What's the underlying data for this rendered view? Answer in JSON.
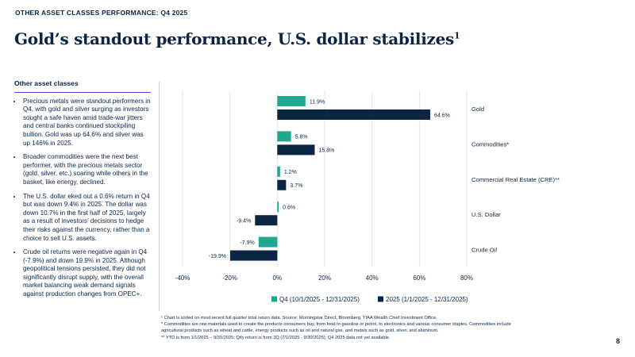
{
  "header": {
    "kicker": "OTHER ASSET CLASSES PERFORMANCE: Q4 2025",
    "title": "Gold’s standout performance, U.S. dollar stabilizes",
    "title_sup": "1"
  },
  "sidebar": {
    "heading": "Other asset classes",
    "bullets": [
      "Precious metals were standout performers in Q4, with gold and silver surging as investors sought a safe haven amid trade-war jitters and central banks continued stockpiling bullion. Gold was up 64.6% and silver was up 146% in 2025.",
      "Broader commodities were the next best performer, with the precious metals sector (gold, silver, etc.) soaring while others in the basket, like energy, declined.",
      "The U.S. dollar eked out a 0.6% return in Q4 but was down 9.4% in 2025. The dollar was down 10.7% in the first half of 2025, largely as a result of investors’ decisions to hedge their risks against the currency, rather than a choice to sell U.S. assets.",
      "Crude oil returns were negative again in Q4 (-7.9%) and down 19.9% in 2025. Although geopolitical tensions persisted, they did not significantly disrupt supply, with the overall market balancing weak demand signals against production changes from OPEC+."
    ]
  },
  "chart_data": {
    "type": "bar",
    "orientation": "horizontal",
    "categories": [
      "Gold",
      "Commodities*",
      "Commercial Real Estate (CRE)**",
      "U.S. Dollar",
      "Crude Oil"
    ],
    "series": [
      {
        "name": "Q4 (10/1/2025 - 12/31/2025)",
        "values": [
          11.9,
          5.8,
          1.2,
          0.6,
          -7.9
        ],
        "labels": [
          "11.9%",
          "5.8%",
          "1.2%",
          "0.6%",
          "-7.9%"
        ],
        "color": "#1fa88f"
      },
      {
        "name": "2025 (1/1/2025 - 12/31/2025)",
        "values": [
          64.6,
          15.8,
          3.7,
          -9.4,
          -19.9
        ],
        "labels": [
          "64.6%",
          "15.8%",
          "3.7%",
          "-9.4%",
          "-19.9%"
        ],
        "color": "#0b2545"
      }
    ],
    "xlim": [
      -40,
      80
    ],
    "xticks": [
      -40,
      -20,
      0,
      20,
      40,
      60,
      80
    ],
    "xtick_labels": [
      "-40%",
      "-20%",
      "0%",
      "20%",
      "40%",
      "60%",
      "80%"
    ],
    "grid": true,
    "legend_position": "bottom"
  },
  "footnotes": [
    "¹ Chart is sorted on most recent full quarter total return data. Source: Morningstar Direct, Bloomberg, TIAA Wealth Chief Investment Office.",
    "* Commodities are raw materials used to create the products consumers buy, from food to gasoline or petrol, to electronics and various consumer staples. Commodities include",
    "agricultural products such as wheat and cattle, energy products such as oil and natural gas, and metals such as gold, silver, and aluminum.",
    "** YTD is from 1/1/2025 – 9/31/2025; Qtly return is from 3Q (7/1/2025 - 9/30/2025); Q4 2025 data not yet available."
  ],
  "page_number": "8"
}
